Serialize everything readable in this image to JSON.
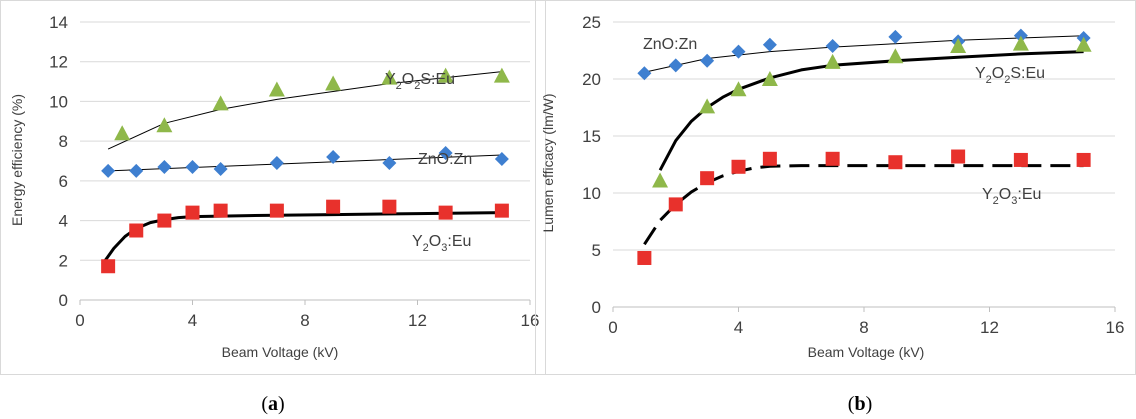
{
  "chart_data": [
    {
      "type": "scatter",
      "panel_label": "(a)",
      "xlabel": "Beam Voltage (kV)",
      "ylabel": "Energy efficiency (%)",
      "xlim": [
        0,
        16
      ],
      "ylim": [
        0,
        14
      ],
      "xticks": [
        0,
        4,
        8,
        12,
        16
      ],
      "yticks": [
        0,
        2,
        4,
        6,
        8,
        10,
        12,
        14
      ],
      "grid": "horizontal",
      "series": [
        {
          "label": "Y2O2S:Eu",
          "marker": "triangle",
          "color": "#8fb84a",
          "x": [
            1.5,
            3,
            5,
            7,
            9,
            11,
            13,
            15
          ],
          "y": [
            8.4,
            8.8,
            9.9,
            10.6,
            10.9,
            11.2,
            11.3,
            11.3
          ],
          "trend": {
            "style": "thin",
            "x": [
              1,
              3,
              5,
              7,
              9,
              11,
              13,
              15
            ],
            "y": [
              7.6,
              8.9,
              9.6,
              10.1,
              10.5,
              10.9,
              11.2,
              11.5
            ]
          }
        },
        {
          "label": "ZnO:Zn",
          "marker": "diamond",
          "color": "#3e7fd0",
          "x": [
            1,
            2,
            3,
            4,
            5,
            7,
            9,
            11,
            13,
            15
          ],
          "y": [
            6.5,
            6.5,
            6.7,
            6.7,
            6.6,
            6.9,
            7.2,
            6.9,
            7.4,
            7.1
          ],
          "trend": {
            "style": "thin",
            "x": [
              1,
              15
            ],
            "y": [
              6.5,
              7.3
            ]
          }
        },
        {
          "label": "Y2O3:Eu",
          "marker": "square",
          "color": "#e8312c",
          "x": [
            1,
            2,
            3,
            4,
            5,
            7,
            9,
            11,
            13,
            15
          ],
          "y": [
            1.7,
            3.5,
            4.0,
            4.4,
            4.5,
            4.5,
            4.7,
            4.7,
            4.4,
            4.5
          ],
          "trend": {
            "style": "thick",
            "x": [
              0.8,
              1.2,
              1.6,
              2,
              2.5,
              3,
              3.5,
              4,
              6,
              9,
              12,
              15
            ],
            "y": [
              1.8,
              2.6,
              3.2,
              3.6,
              3.9,
              4.05,
              4.15,
              4.2,
              4.25,
              4.3,
              4.35,
              4.4
            ]
          }
        }
      ]
    },
    {
      "type": "scatter",
      "panel_label": "(b)",
      "xlabel": "Beam Voltage (kV)",
      "ylabel": "Lumen efficacy (lm/W)",
      "xlim": [
        0,
        16
      ],
      "ylim": [
        0,
        25
      ],
      "xticks": [
        0,
        4,
        8,
        12,
        16
      ],
      "yticks": [
        0,
        5,
        10,
        15,
        20,
        25
      ],
      "grid": "horizontal",
      "series": [
        {
          "label": "ZnO:Zn",
          "marker": "diamond",
          "color": "#3e7fd0",
          "x": [
            1,
            2,
            3,
            4,
            5,
            7,
            9,
            11,
            13,
            15
          ],
          "y": [
            20.5,
            21.2,
            21.6,
            22.4,
            23.0,
            22.9,
            23.7,
            23.3,
            23.8,
            23.6
          ],
          "trend": {
            "style": "thin",
            "x": [
              1,
              3,
              5,
              7,
              9,
              11,
              13,
              15
            ],
            "y": [
              20.6,
              21.8,
              22.4,
              22.8,
              23.1,
              23.4,
              23.6,
              23.8
            ]
          }
        },
        {
          "label": "Y2O2S:Eu",
          "marker": "triangle",
          "color": "#8fb84a",
          "x": [
            1.5,
            3,
            4,
            5,
            7,
            9,
            11,
            13,
            15
          ],
          "y": [
            11.1,
            17.6,
            19.1,
            20.0,
            21.5,
            22.0,
            22.9,
            23.1,
            23.0
          ],
          "trend": {
            "style": "thick",
            "x": [
              1.5,
              2,
              2.5,
              3,
              3.5,
              4,
              5,
              6,
              7,
              9,
              11,
              13,
              15
            ],
            "y": [
              12.0,
              14.6,
              16.3,
              17.5,
              18.4,
              19.1,
              20.1,
              20.8,
              21.2,
              21.6,
              21.9,
              22.2,
              22.4
            ]
          }
        },
        {
          "label": "Y2O3:Eu",
          "marker": "square",
          "color": "#e8312c",
          "x": [
            1,
            2,
            3,
            4,
            5,
            7,
            9,
            11,
            13,
            15
          ],
          "y": [
            4.3,
            9.0,
            11.3,
            12.3,
            13.0,
            13.0,
            12.7,
            13.2,
            12.9,
            12.9
          ],
          "trend": {
            "style": "dashed",
            "x": [
              1,
              1.5,
              2,
              2.5,
              3,
              3.5,
              4,
              4.5,
              5,
              6,
              8,
              10,
              12,
              15
            ],
            "y": [
              5.5,
              7.6,
              9.0,
              10.1,
              10.9,
              11.5,
              11.9,
              12.2,
              12.35,
              12.4,
              12.4,
              12.4,
              12.4,
              12.4
            ]
          }
        }
      ]
    }
  ]
}
